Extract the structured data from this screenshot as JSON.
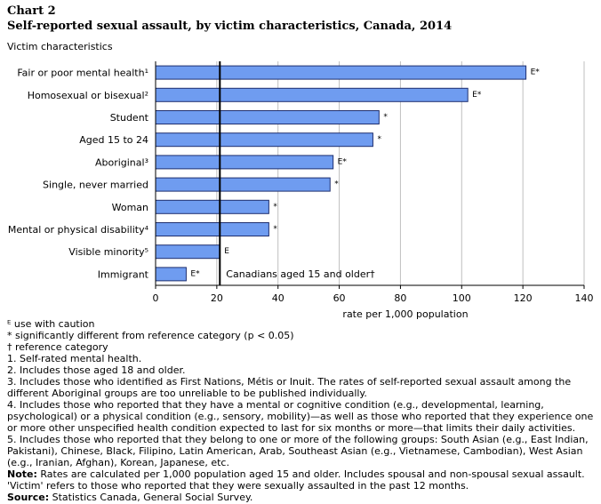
{
  "heading": {
    "chart_number": "Chart 2",
    "title": "Self-reported sexual assault, by victim characteristics, Canada, 2014"
  },
  "colors": {
    "bar_fill": "#6f9cf0",
    "bar_stroke": "#1f2f6f",
    "grid": "#bfbfbf",
    "reference_line": "#000000"
  },
  "chart_data": {
    "type": "bar",
    "orientation": "horizontal",
    "yaxis_title": "Victim characteristics",
    "xlabel": "rate per 1,000 population",
    "xlim": [
      0,
      140
    ],
    "xticks": [
      0,
      20,
      40,
      60,
      80,
      100,
      120,
      140
    ],
    "grid": true,
    "categories": [
      "Fair or poor mental health¹",
      "Homosexual or bisexual²",
      "Student",
      "Aged 15 to 24",
      "Aboriginal³",
      "Single, never married",
      "Woman",
      "Mental or physical disability⁴",
      "Visible minority⁵",
      "Immigrant"
    ],
    "values": [
      121,
      102,
      73,
      71,
      58,
      57,
      37,
      37,
      21,
      10
    ],
    "flags": [
      "E*",
      "E*",
      "*",
      "*",
      "E*",
      "*",
      "*",
      "*",
      "E",
      "E*"
    ],
    "reference": {
      "value": 21,
      "label": "Canadians aged 15 and older†"
    }
  },
  "notes": {
    "legend_e": "ᴱ use with caution",
    "legend_star": "* significantly different from reference category (p < 0.05)",
    "legend_dagger": "† reference category",
    "note1": "1. Self-rated mental health.",
    "note2": "2. Includes those aged 18 and older.",
    "note3": "3. Includes those who identified as First Nations, Métis or Inuit. The rates of self-reported sexual assault among the different Aboriginal groups are too unreliable to be published individually.",
    "note4": "4. Includes those who reported that they have a mental or cognitive condition (e.g., developmental, learning, psychological) or a physical condition (e.g., sensory, mobility)—as well as those who reported that they experience one or more other unspecified health condition expected to last for six months or more—that limits their daily activities.",
    "note5": "5. Includes those who reported that they belong to one or more of the following groups: South Asian (e.g., East Indian, Pakistani), Chinese, Black, Filipino, Latin American, Arab, Southeast Asian (e.g., Vietnamese, Cambodian), West Asian (e.g., Iranian, Afghan), Korean, Japanese, etc.",
    "note_label": "Note:",
    "note_text": " Rates are calculated per 1,000 population aged 15 and older. Includes spousal and non-spousal sexual assault. 'Victim' refers to those who reported that they were sexually assaulted in the past 12 months.",
    "source_label": "Source:",
    "source_text": " Statistics Canada, General Social Survey."
  }
}
